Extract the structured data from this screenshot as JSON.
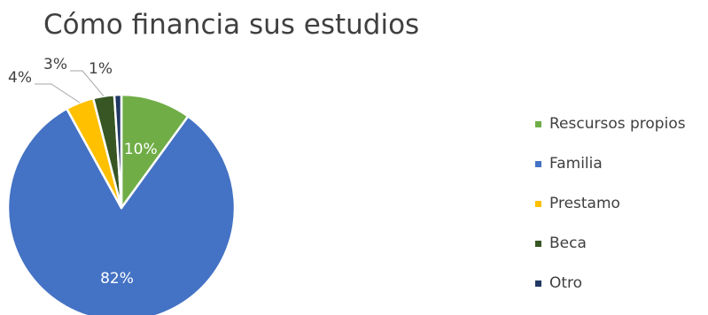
{
  "chart_data": {
    "type": "pie",
    "title": "Cómo financia sus estudios",
    "categories": [
      "Rescursos propios",
      "Familia",
      "Prestamo",
      "Beca",
      "Otro"
    ],
    "values": [
      10,
      82,
      4,
      3,
      1
    ],
    "data_labels": [
      "10%",
      "82%",
      "4%",
      "3%",
      "1%"
    ],
    "colors": [
      "#70AD47",
      "#4472C4",
      "#FFC000",
      "#375623",
      "#203864"
    ],
    "legend_position": "right",
    "start_angle": "top, clockwise"
  }
}
